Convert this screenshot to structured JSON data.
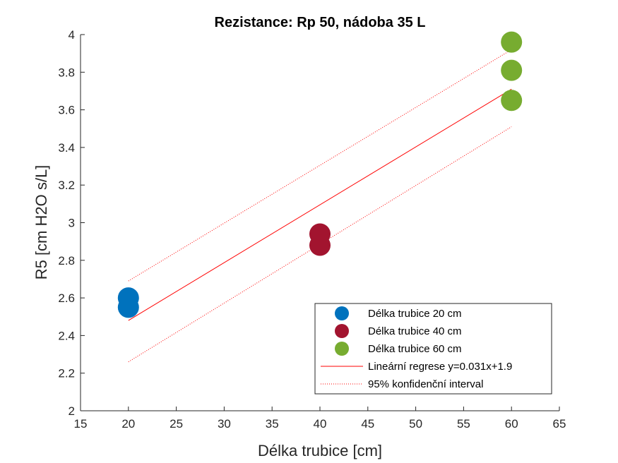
{
  "chart_data": {
    "type": "scatter",
    "title": "Rezistance: Rp 50, nádoba 35 L",
    "xlabel": "Délka trubice [cm]",
    "ylabel": "R5 [cm H2O s/L]",
    "xlim": [
      15,
      65
    ],
    "ylim": [
      2,
      4
    ],
    "xticks": [
      15,
      20,
      25,
      30,
      35,
      40,
      45,
      50,
      55,
      60,
      65
    ],
    "yticks": [
      2,
      2.2,
      2.4,
      2.6,
      2.8,
      3,
      3.2,
      3.4,
      3.6,
      3.8,
      4
    ],
    "xtick_labels": [
      "15",
      "20",
      "25",
      "30",
      "35",
      "40",
      "45",
      "50",
      "55",
      "60",
      "65"
    ],
    "ytick_labels": [
      "2",
      "2.2",
      "2.4",
      "2.6",
      "2.8",
      "3",
      "3.2",
      "3.4",
      "3.6",
      "3.8",
      "4"
    ],
    "grid": false,
    "legend_position": "bottom-right",
    "series": [
      {
        "name": "Délka trubice 20 cm",
        "color": "#0072BD",
        "x": [
          20,
          20
        ],
        "y": [
          2.6,
          2.55
        ]
      },
      {
        "name": "Délka trubice 40 cm",
        "color": "#A2142F",
        "x": [
          40,
          40
        ],
        "y": [
          2.94,
          2.88
        ]
      },
      {
        "name": "Délka trubice 60 cm",
        "color": "#77AC30",
        "x": [
          60,
          60,
          60
        ],
        "y": [
          3.96,
          3.81,
          3.65
        ]
      }
    ],
    "regression": {
      "name": "Lineární regrese y=0.031x+1.9",
      "color": "#FF0000",
      "x": [
        20,
        60
      ],
      "y": [
        2.48,
        3.71
      ]
    },
    "confidence_interval": {
      "name": "95% konfidenční interval",
      "color": "#FF0000",
      "x": [
        20,
        60
      ],
      "upper": [
        2.69,
        3.92
      ],
      "lower": [
        2.26,
        3.51
      ]
    }
  }
}
